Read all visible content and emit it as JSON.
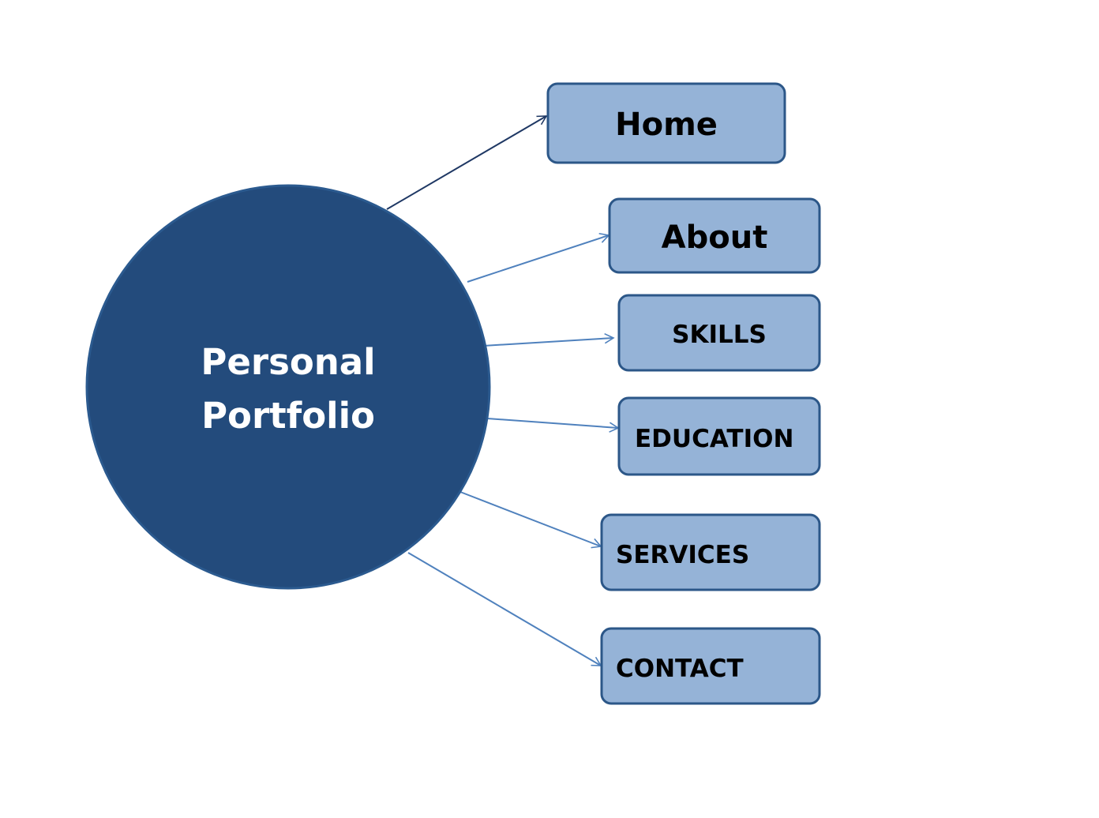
{
  "hub": {
    "line1": "Personal",
    "line2": "Portfolio",
    "fill": "#234b7c",
    "text_color": "#ffffff"
  },
  "nodes": [
    {
      "id": "home",
      "label": "Home"
    },
    {
      "id": "about",
      "label": "About"
    },
    {
      "id": "skills",
      "label": "SKILLS"
    },
    {
      "id": "education",
      "label": "EDUCATION"
    },
    {
      "id": "services",
      "label": "SERVICES"
    },
    {
      "id": "contact",
      "label": "CONTACT"
    }
  ],
  "colors": {
    "box_fill": "#95b3d7",
    "box_border": "#2c5788",
    "arrow_dark": "#1f3864",
    "arrow_light": "#4f81bd"
  }
}
